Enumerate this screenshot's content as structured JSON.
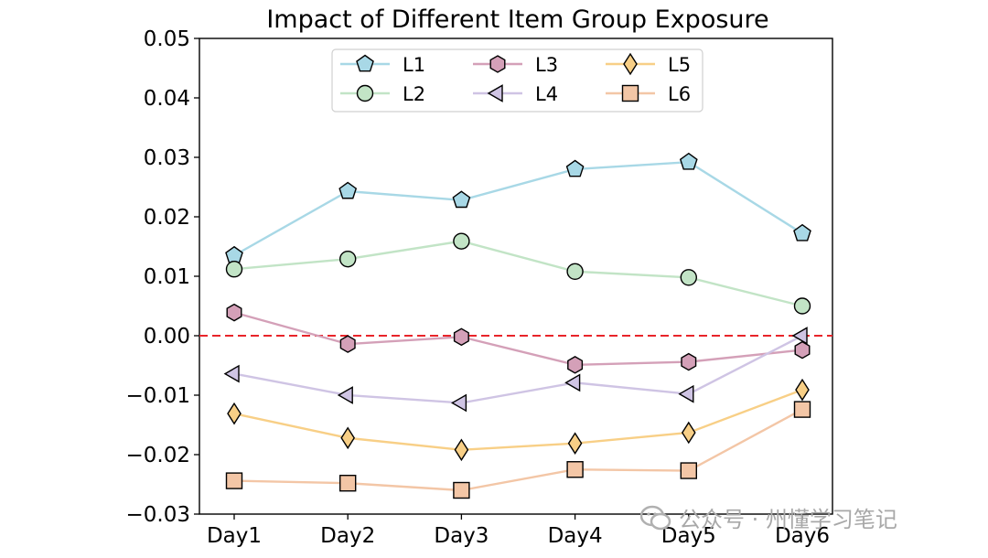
{
  "chart_data": {
    "type": "line",
    "title": "Impact of Different Item Group Exposure",
    "xlabel": "",
    "ylabel": "",
    "categories": [
      "Day1",
      "Day2",
      "Day3",
      "Day4",
      "Day5",
      "Day6"
    ],
    "ylim": [
      -0.03,
      0.05
    ],
    "yticks": [
      "0.05",
      "0.04",
      "0.03",
      "0.02",
      "0.01",
      "0.00",
      "−0.01",
      "−0.02",
      "−0.03"
    ],
    "ytick_values": [
      0.05,
      0.04,
      0.03,
      0.02,
      0.01,
      0.0,
      -0.01,
      -0.02,
      -0.03
    ],
    "reference_line": {
      "y": 0.0,
      "color": "#e8242a",
      "style": "dashed"
    },
    "legend": {
      "placement": "top-center",
      "columns": 3
    },
    "series": [
      {
        "name": "L1",
        "marker": "pentagon",
        "line_color": "#a8d8e6",
        "fill_color": "#a8d8e6",
        "values": [
          0.0135,
          0.0243,
          0.0228,
          0.028,
          0.0292,
          0.0172
        ]
      },
      {
        "name": "L2",
        "marker": "circle",
        "line_color": "#c2e4c6",
        "fill_color": "#c2e4c6",
        "values": [
          0.0112,
          0.0129,
          0.0159,
          0.0108,
          0.0098,
          0.005
        ]
      },
      {
        "name": "L3",
        "marker": "hexagon",
        "line_color": "#d4a0b8",
        "fill_color": "#d4a0b8",
        "values": [
          0.0039,
          -0.0014,
          -0.0002,
          -0.0049,
          -0.0044,
          -0.0024
        ]
      },
      {
        "name": "L4",
        "marker": "triangle-left",
        "line_color": "#cfc4e4",
        "fill_color": "#cfc4e4",
        "values": [
          -0.0064,
          -0.01,
          -0.0113,
          -0.0079,
          -0.0098,
          0.0
        ]
      },
      {
        "name": "L5",
        "marker": "diamond",
        "line_color": "#f8cf86",
        "fill_color": "#f8cf86",
        "values": [
          -0.0131,
          -0.0172,
          -0.0192,
          -0.0181,
          -0.0163,
          -0.0091
        ]
      },
      {
        "name": "L6",
        "marker": "square",
        "line_color": "#f3c6a6",
        "fill_color": "#f3c6a6",
        "values": [
          -0.0244,
          -0.0248,
          -0.026,
          -0.0225,
          -0.0227,
          -0.0124
        ]
      }
    ]
  },
  "watermark": {
    "text": "公众号 · 州懂学习笔记"
  }
}
